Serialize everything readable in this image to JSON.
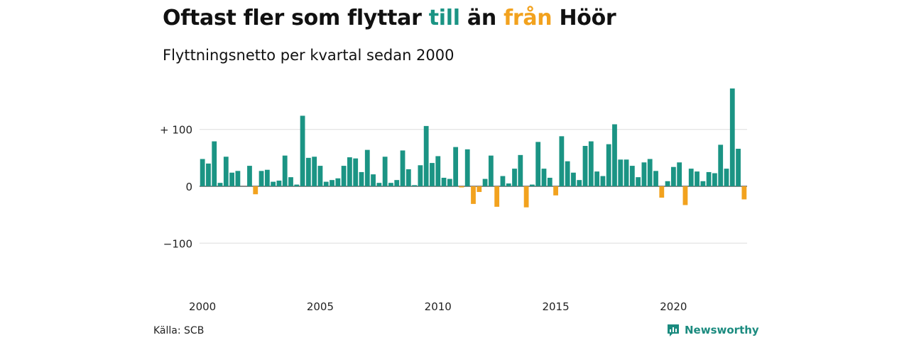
{
  "title": {
    "part1": "Oftast fler som flyttar",
    "till": "till",
    "part2": "än",
    "fran": "från",
    "part3": "Höör"
  },
  "subtitle": "Flyttningsnetto per kvartal sedan 2000",
  "source": "Källa: SCB",
  "brand": {
    "name": "Newsworthy",
    "icon": "newsworthy-logo-icon"
  },
  "colors": {
    "positive": "#1b9484",
    "negative": "#f2a21e",
    "grid": "#dddddd",
    "axis": "#444444"
  },
  "chart_data": {
    "type": "bar",
    "title": "Oftast fler som flyttar till än från Höör",
    "subtitle": "Flyttningsnetto per kvartal sedan 2000",
    "x_start_year": 2000,
    "quarters_per_year": 4,
    "x_ticks": [
      "2000",
      "2005",
      "2010",
      "2015",
      "2020"
    ],
    "y_ticks": [
      {
        "value": 100,
        "label": "+ 100"
      },
      {
        "value": 0,
        "label": "0"
      },
      {
        "value": -100,
        "label": "−100"
      }
    ],
    "ylim": [
      -130,
      190
    ],
    "grid": true,
    "values": [
      48,
      40,
      79,
      6,
      52,
      24,
      27,
      0,
      36,
      -14,
      27,
      29,
      8,
      10,
      54,
      16,
      3,
      124,
      50,
      52,
      36,
      8,
      11,
      14,
      36,
      51,
      49,
      25,
      64,
      21,
      6,
      52,
      6,
      11,
      63,
      30,
      2,
      37,
      106,
      41,
      53,
      15,
      13,
      69,
      -2,
      65,
      -31,
      -10,
      13,
      54,
      -36,
      18,
      5,
      31,
      55,
      -37,
      3,
      78,
      31,
      15,
      -16,
      88,
      44,
      24,
      11,
      71,
      79,
      26,
      18,
      74,
      109,
      47,
      47,
      36,
      16,
      42,
      48,
      27,
      -20,
      9,
      34,
      42,
      -33,
      31,
      26,
      9,
      25,
      23,
      73,
      31,
      172,
      66,
      -23
    ]
  }
}
